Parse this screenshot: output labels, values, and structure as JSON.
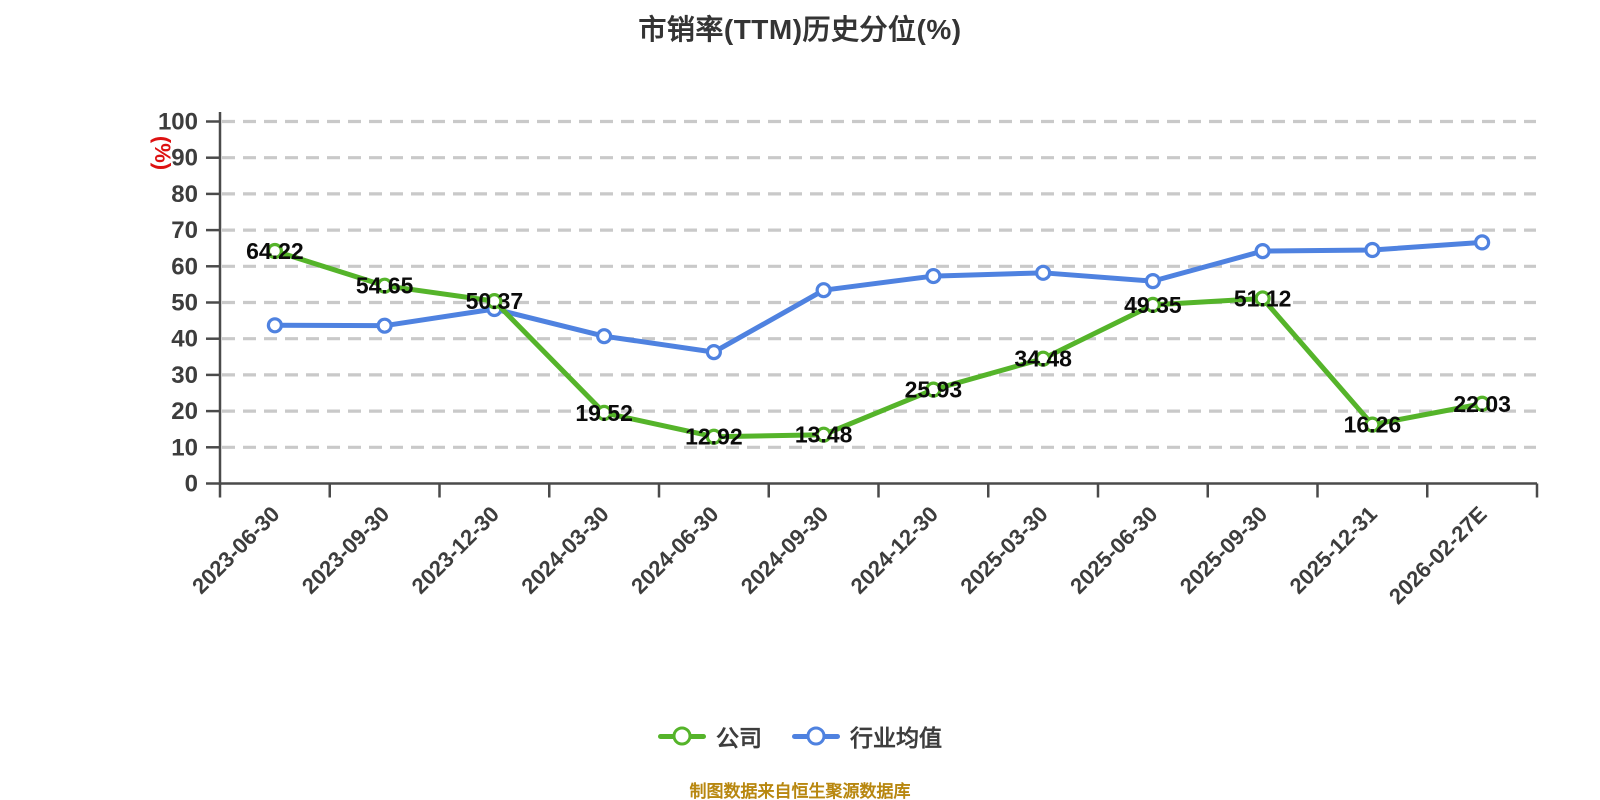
{
  "chart_data": {
    "type": "line",
    "title": "市销率(TTM)历史分位(%)",
    "xlabel": "",
    "ylabel": "(%)",
    "ylim": [
      0,
      100
    ],
    "ytick_step": 10,
    "grid": "horizontal-dashed",
    "legend_position": "bottom-center",
    "x_tick_label_rotation": 45,
    "categories": [
      "2023-06-30",
      "2023-09-30",
      "2023-12-30",
      "2024-03-30",
      "2024-06-30",
      "2024-09-30",
      "2024-12-30",
      "2025-03-30",
      "2025-06-30",
      "2025-09-30",
      "2025-12-31",
      "2026-02-27E"
    ],
    "series": [
      {
        "name": "公司",
        "color": "#55b42a",
        "marker": "circle-white-fill",
        "data_labels_shown": true,
        "values": [
          64.22,
          54.65,
          50.37,
          19.52,
          12.92,
          13.48,
          25.93,
          34.48,
          49.35,
          51.12,
          16.26,
          22.03
        ]
      },
      {
        "name": "行业均值",
        "color": "#4f82e0",
        "marker": "circle-white-fill",
        "data_labels_shown": false,
        "values_estimated": true,
        "values": [
          43.7,
          43.6,
          48.2,
          40.7,
          36.3,
          53.4,
          57.3,
          58.2,
          55.9,
          64.2,
          64.5,
          66.6
        ]
      }
    ]
  },
  "footer": {
    "text": "制图数据来自恒生聚源数据库"
  },
  "colors": {
    "title": "#343434",
    "axis": "#4a4a4a",
    "grid": "#c9c9c9",
    "tick_label": "#3d3d3d",
    "data_label": "#0b0b0b",
    "unit_label": "#dd1111",
    "legend_text": "#3d3d3d",
    "footer_text": "#b8870f",
    "background": "#ffffff"
  }
}
